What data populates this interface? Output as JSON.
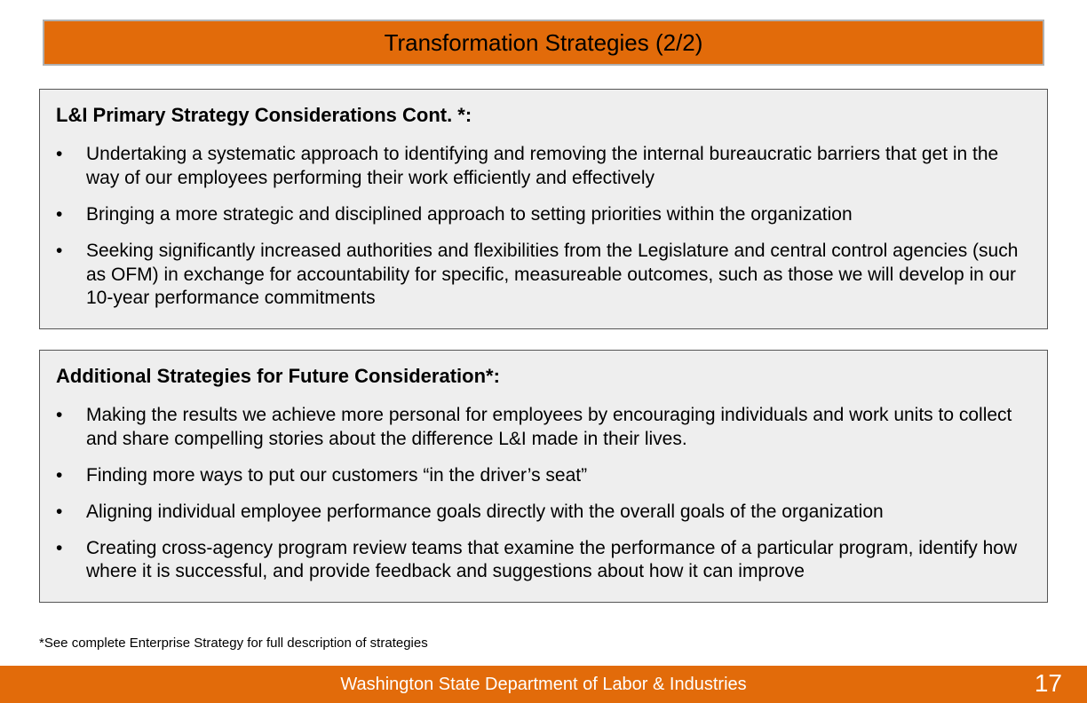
{
  "title": "Transformation Strategies (2/2)",
  "colors": {
    "accent": "#e26b0a",
    "box_bg": "#eeeeee",
    "box_border": "#555555",
    "title_border": "#b0b0b0",
    "text": "#000000",
    "footer_text": "#ffffff"
  },
  "typography": {
    "title_fontsize": 26,
    "section_title_fontsize": 22,
    "body_fontsize": 21,
    "footnote_fontsize": 15,
    "footer_fontsize": 20,
    "pagenum_fontsize": 28,
    "font_family": "Arial"
  },
  "box1": {
    "heading": "L&I Primary Strategy Considerations Cont. *:",
    "items": [
      "Undertaking a systematic approach to identifying and removing the internal bureaucratic barriers that get in the way of our employees performing their work efficiently and effectively",
      "Bringing a more strategic and disciplined approach to setting priorities within the organization",
      "Seeking significantly increased authorities and flexibilities from the Legislature and central control agencies (such as OFM) in exchange for accountability for specific, measureable outcomes, such as those we will develop in our 10-year performance commitments"
    ]
  },
  "box2": {
    "heading": "Additional Strategies for Future Consideration*:",
    "items": [
      "Making the results we achieve more personal for employees by encouraging individuals and work units to collect and share compelling stories about the difference L&I made in their lives.",
      "Finding more ways to put our customers “in the driver’s seat”",
      "Aligning individual employee performance goals directly with the overall goals of the organization",
      "Creating cross-agency program review teams that examine the performance of a particular program, identify how where it is successful, and provide feedback and suggestions about how it can improve"
    ]
  },
  "footnote": "*See complete Enterprise Strategy for full description of strategies",
  "footer": "Washington State Department of Labor & Industries",
  "page_number": "17"
}
